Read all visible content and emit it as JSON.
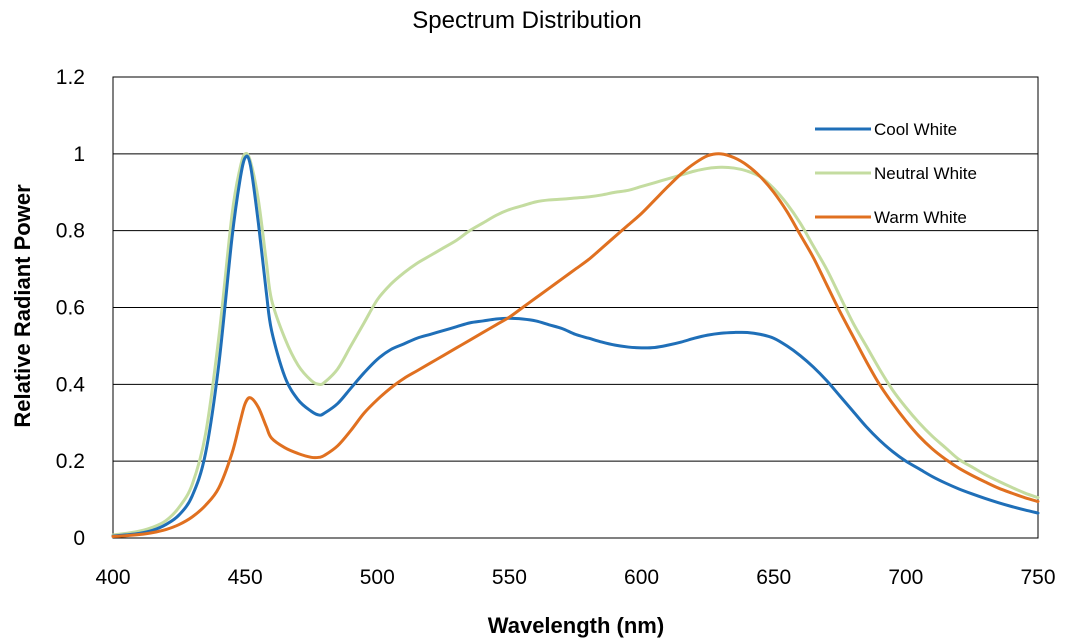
{
  "chart_data": {
    "type": "line",
    "title": "Spectrum Distribution",
    "xlabel": "Wavelength (nm)",
    "ylabel": "Relative Radiant Power",
    "xlim": [
      400,
      750
    ],
    "ylim": [
      0,
      1.2
    ],
    "x_ticks": [
      "400",
      "450",
      "500",
      "550",
      "600",
      "650",
      "700",
      "750"
    ],
    "y_ticks": [
      "0",
      "0.2",
      "0.4",
      "0.6",
      "0.8",
      "1",
      "1.2"
    ],
    "grid": "horizontal",
    "legend_position": "top-right",
    "x": [
      400,
      405,
      410,
      415,
      420,
      425,
      430,
      435,
      440,
      445,
      448,
      450,
      452,
      455,
      458,
      460,
      465,
      470,
      475,
      478,
      480,
      485,
      490,
      495,
      500,
      505,
      510,
      515,
      520,
      525,
      530,
      535,
      540,
      545,
      550,
      555,
      560,
      565,
      570,
      575,
      580,
      585,
      590,
      595,
      600,
      605,
      610,
      615,
      620,
      625,
      630,
      635,
      640,
      645,
      650,
      655,
      660,
      665,
      670,
      675,
      680,
      685,
      690,
      695,
      700,
      705,
      710,
      715,
      720,
      725,
      730,
      735,
      740,
      745,
      750
    ],
    "series": [
      {
        "name": "Cool White",
        "color": "#1f6fb8",
        "values": [
          0.005,
          0.008,
          0.012,
          0.02,
          0.035,
          0.06,
          0.11,
          0.22,
          0.45,
          0.78,
          0.93,
          0.99,
          0.97,
          0.82,
          0.64,
          0.54,
          0.42,
          0.36,
          0.33,
          0.32,
          0.325,
          0.35,
          0.39,
          0.43,
          0.465,
          0.49,
          0.505,
          0.52,
          0.53,
          0.54,
          0.55,
          0.56,
          0.565,
          0.57,
          0.572,
          0.57,
          0.565,
          0.555,
          0.545,
          0.53,
          0.52,
          0.51,
          0.502,
          0.497,
          0.495,
          0.496,
          0.502,
          0.51,
          0.52,
          0.528,
          0.533,
          0.535,
          0.535,
          0.53,
          0.52,
          0.5,
          0.475,
          0.445,
          0.41,
          0.37,
          0.33,
          0.29,
          0.255,
          0.225,
          0.2,
          0.18,
          0.16,
          0.143,
          0.128,
          0.115,
          0.103,
          0.092,
          0.082,
          0.073,
          0.065
        ]
      },
      {
        "name": "Neutral White",
        "color": "#c4dca0",
        "values": [
          0.008,
          0.012,
          0.018,
          0.028,
          0.045,
          0.08,
          0.14,
          0.27,
          0.52,
          0.84,
          0.96,
          1.0,
          0.98,
          0.88,
          0.72,
          0.62,
          0.52,
          0.45,
          0.41,
          0.4,
          0.405,
          0.44,
          0.5,
          0.56,
          0.62,
          0.66,
          0.69,
          0.715,
          0.735,
          0.755,
          0.775,
          0.8,
          0.82,
          0.84,
          0.855,
          0.865,
          0.875,
          0.88,
          0.882,
          0.885,
          0.888,
          0.893,
          0.9,
          0.905,
          0.915,
          0.925,
          0.935,
          0.945,
          0.955,
          0.962,
          0.965,
          0.963,
          0.955,
          0.94,
          0.91,
          0.87,
          0.82,
          0.76,
          0.7,
          0.63,
          0.56,
          0.5,
          0.44,
          0.385,
          0.34,
          0.3,
          0.265,
          0.235,
          0.205,
          0.185,
          0.165,
          0.148,
          0.132,
          0.117,
          0.105
        ]
      },
      {
        "name": "Warm White",
        "color": "#e07020",
        "values": [
          0.004,
          0.006,
          0.009,
          0.014,
          0.022,
          0.035,
          0.055,
          0.085,
          0.13,
          0.22,
          0.3,
          0.35,
          0.365,
          0.34,
          0.29,
          0.26,
          0.235,
          0.22,
          0.21,
          0.21,
          0.215,
          0.24,
          0.28,
          0.325,
          0.36,
          0.39,
          0.415,
          0.435,
          0.455,
          0.475,
          0.495,
          0.515,
          0.535,
          0.555,
          0.575,
          0.6,
          0.625,
          0.65,
          0.675,
          0.7,
          0.725,
          0.755,
          0.785,
          0.815,
          0.845,
          0.88,
          0.915,
          0.948,
          0.975,
          0.995,
          1.0,
          0.99,
          0.97,
          0.94,
          0.9,
          0.85,
          0.79,
          0.73,
          0.66,
          0.59,
          0.525,
          0.46,
          0.4,
          0.35,
          0.305,
          0.265,
          0.232,
          0.205,
          0.182,
          0.163,
          0.146,
          0.13,
          0.117,
          0.105,
          0.095
        ]
      }
    ]
  }
}
